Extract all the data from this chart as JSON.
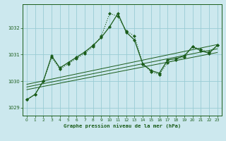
{
  "title": "Graphe pression niveau de la mer (hPa)",
  "bg_color": "#cce8ee",
  "grid_color": "#99ccd4",
  "line_color": "#1a5c1a",
  "xlim": [
    -0.5,
    23.5
  ],
  "ylim": [
    1028.7,
    1032.9
  ],
  "yticks": [
    1029,
    1030,
    1031,
    1032
  ],
  "xticks": [
    0,
    1,
    2,
    3,
    4,
    5,
    6,
    7,
    8,
    9,
    10,
    11,
    12,
    13,
    14,
    15,
    16,
    17,
    18,
    19,
    20,
    21,
    22,
    23
  ],
  "series_main": {
    "x": [
      0,
      1,
      2,
      3,
      4,
      5,
      6,
      7,
      8,
      9,
      10,
      11,
      12,
      13,
      14,
      15,
      16,
      17,
      18,
      19,
      20,
      21,
      22,
      23
    ],
    "y": [
      1029.3,
      1029.5,
      1030.0,
      1030.95,
      1030.5,
      1030.7,
      1030.9,
      1031.1,
      1031.35,
      1031.65,
      1032.05,
      1032.55,
      1031.85,
      1031.55,
      1030.65,
      1030.4,
      1030.3,
      1030.8,
      1030.85,
      1030.95,
      1031.3,
      1031.15,
      1031.05,
      1031.35
    ]
  },
  "series_dot": {
    "x": [
      0,
      1,
      2,
      3,
      4,
      5,
      6,
      7,
      8,
      9,
      10,
      11,
      12,
      13,
      14,
      15,
      16,
      17,
      18,
      19,
      20,
      21,
      22,
      23
    ],
    "y": [
      1029.3,
      1029.5,
      1030.0,
      1030.9,
      1030.45,
      1030.65,
      1030.85,
      1031.05,
      1031.3,
      1031.7,
      1032.55,
      1032.45,
      1031.9,
      1031.7,
      1030.65,
      1030.35,
      1030.25,
      1030.7,
      1030.8,
      1030.9,
      1031.3,
      1031.2,
      1031.1,
      1031.35
    ]
  },
  "trend_lines": [
    {
      "x": [
        0,
        23
      ],
      "y": [
        1029.88,
        1031.38
      ]
    },
    {
      "x": [
        0,
        23
      ],
      "y": [
        1029.78,
        1031.22
      ]
    },
    {
      "x": [
        0,
        23
      ],
      "y": [
        1029.68,
        1031.08
      ]
    }
  ]
}
